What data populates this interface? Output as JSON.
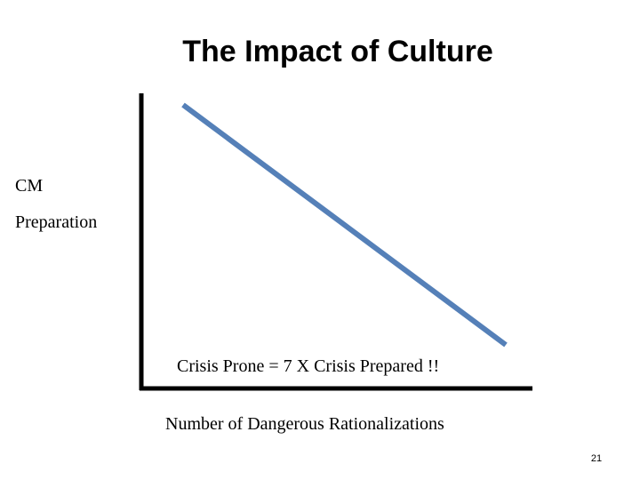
{
  "title": "The Impact of Culture",
  "y_axis_label": [
    "CM",
    "Preparation"
  ],
  "annotation": "Crisis Prone = 7 X Crisis Prepared !!",
  "x_axis_label": "Number of Dangerous Rationalizations",
  "page_number": "21"
}
